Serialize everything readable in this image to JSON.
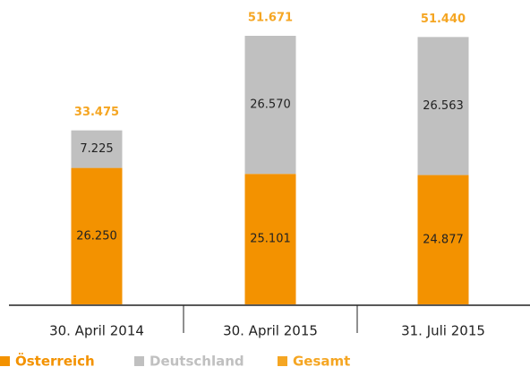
{
  "chart_data": {
    "type": "stacked_bar",
    "categories": [
      "30. April 2014",
      "30. April 2015",
      "31. Juli 2015"
    ],
    "series": [
      {
        "name": "Österreich",
        "color": "#f39200",
        "values": [
          26250,
          25101,
          24877
        ],
        "value_labels": [
          "26.250",
          "25.101",
          "24.877"
        ]
      },
      {
        "name": "Deutschland",
        "color": "#c0c0c0",
        "values": [
          7225,
          26570,
          26563
        ],
        "value_labels": [
          "7.225",
          "26.570",
          "26.563"
        ]
      },
      {
        "name": "Gesamt",
        "color": "#f5a623",
        "values": [
          33475,
          51671,
          51440
        ],
        "value_labels": [
          "33.475",
          "51.671",
          "51.440"
        ],
        "total": true
      }
    ]
  }
}
